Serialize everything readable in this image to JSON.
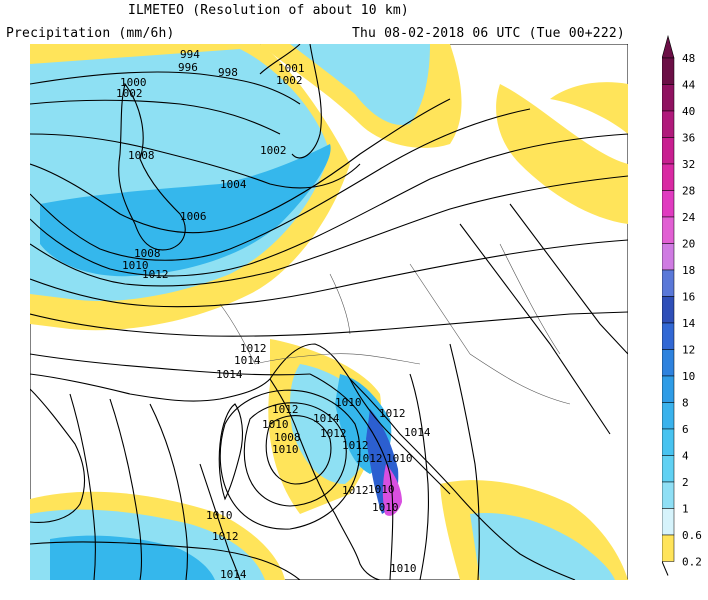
{
  "header": {
    "title": "ILMETEO (Resolution of about 10 km)",
    "product": "Precipitation (mm/6h)",
    "valid_time": "Thu 08-02-2018 06 UTC (Tue 00+222)"
  },
  "colors": {
    "land": "#ffffff",
    "yellow": "#ffe45a",
    "light_blue": "#8ee0f3",
    "blue": "#35b7ec",
    "deep_blue": "#2c5fd0",
    "magenta": "#d84fe0",
    "contour": "#000000",
    "coast": "#000000",
    "border": "#555555"
  },
  "legend": {
    "values": [
      "48",
      "44",
      "40",
      "36",
      "32",
      "28",
      "24",
      "20",
      "18",
      "16",
      "14",
      "12",
      "10",
      "8",
      "6",
      "4",
      "2",
      "1",
      "0.6",
      "0.2"
    ],
    "colors": [
      "#6b0f46",
      "#8f1260",
      "#b01a7b",
      "#c81f90",
      "#d92aa3",
      "#e03bc0",
      "#e15fd3",
      "#cf7be2",
      "#5a78d8",
      "#2f4fb8",
      "#3268d4",
      "#2e82de",
      "#2f9ce6",
      "#3ab2ec",
      "#48c3f0",
      "#61d1f3",
      "#8fdff5",
      "#d6f3fb",
      "#ffe45a"
    ]
  },
  "pressure_labels": [
    "994",
    "996",
    "998",
    "1000",
    "1002",
    "1001",
    "1002",
    "1002",
    "1004",
    "1006",
    "1008",
    "1008",
    "1010",
    "1012",
    "1012",
    "1014",
    "1014",
    "1014",
    "1010",
    "1012",
    "1010",
    "1008",
    "1010",
    "1012",
    "1012",
    "1012",
    "1012",
    "1010",
    "1010",
    "1010",
    "1010",
    "1012",
    "1014",
    "1014",
    "1012",
    "1010"
  ]
}
